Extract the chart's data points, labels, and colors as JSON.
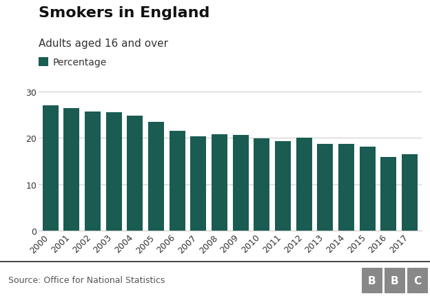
{
  "title": "Smokers in England",
  "subtitle": "Adults aged 16 and over",
  "legend_label": "Percentage",
  "source": "Source: Office for National Statistics",
  "bbc_label": "BBC",
  "years": [
    2000,
    2001,
    2002,
    2003,
    2004,
    2005,
    2006,
    2007,
    2008,
    2009,
    2010,
    2011,
    2012,
    2013,
    2014,
    2015,
    2016,
    2017
  ],
  "values": [
    27.0,
    26.5,
    25.7,
    25.6,
    24.8,
    23.5,
    21.5,
    20.4,
    20.8,
    20.6,
    19.9,
    19.3,
    20.0,
    18.7,
    18.7,
    18.2,
    15.9,
    16.5
  ],
  "bar_color": "#1a5c52",
  "background_color": "#ffffff",
  "ylim": [
    0,
    32
  ],
  "yticks": [
    0,
    10,
    20,
    30
  ],
  "grid_color": "#cccccc",
  "title_fontsize": 16,
  "subtitle_fontsize": 11,
  "tick_fontsize": 9,
  "source_fontsize": 9,
  "legend_fontsize": 10,
  "footer_line_color": "#222222"
}
